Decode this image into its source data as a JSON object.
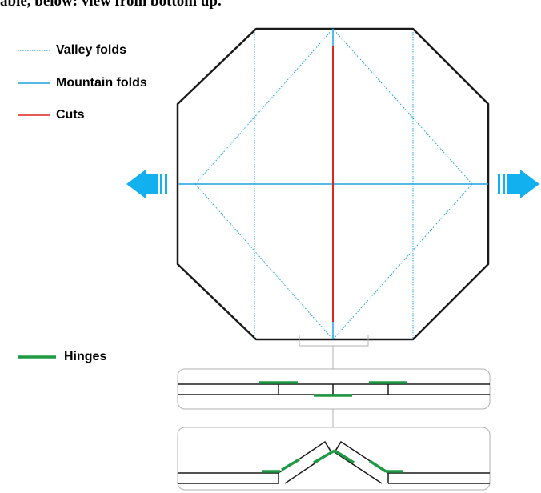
{
  "caption": "able, below: view from bottom up.",
  "legend": {
    "valley": {
      "label": "Valley folds",
      "color": "#1aa3e0",
      "style": "dotted"
    },
    "mountain": {
      "label": "Mountain folds",
      "color": "#1aa3e0",
      "style": "solid"
    },
    "cuts": {
      "label": "Cuts",
      "color": "#e0241f",
      "style": "solid"
    },
    "hinges": {
      "label": "Hinges",
      "color": "#1f9a44",
      "style": "solid"
    }
  },
  "colors": {
    "outline": "#1a1a1a",
    "fold": "#1aa3e0",
    "cut": "#e0241f",
    "hinge": "#1f9a44",
    "arrow": "#12b0ee",
    "panel_border": "#b0b0b0"
  },
  "icons": {
    "left_arrow": "arrow-left-icon",
    "right_arrow": "arrow-right-icon"
  }
}
